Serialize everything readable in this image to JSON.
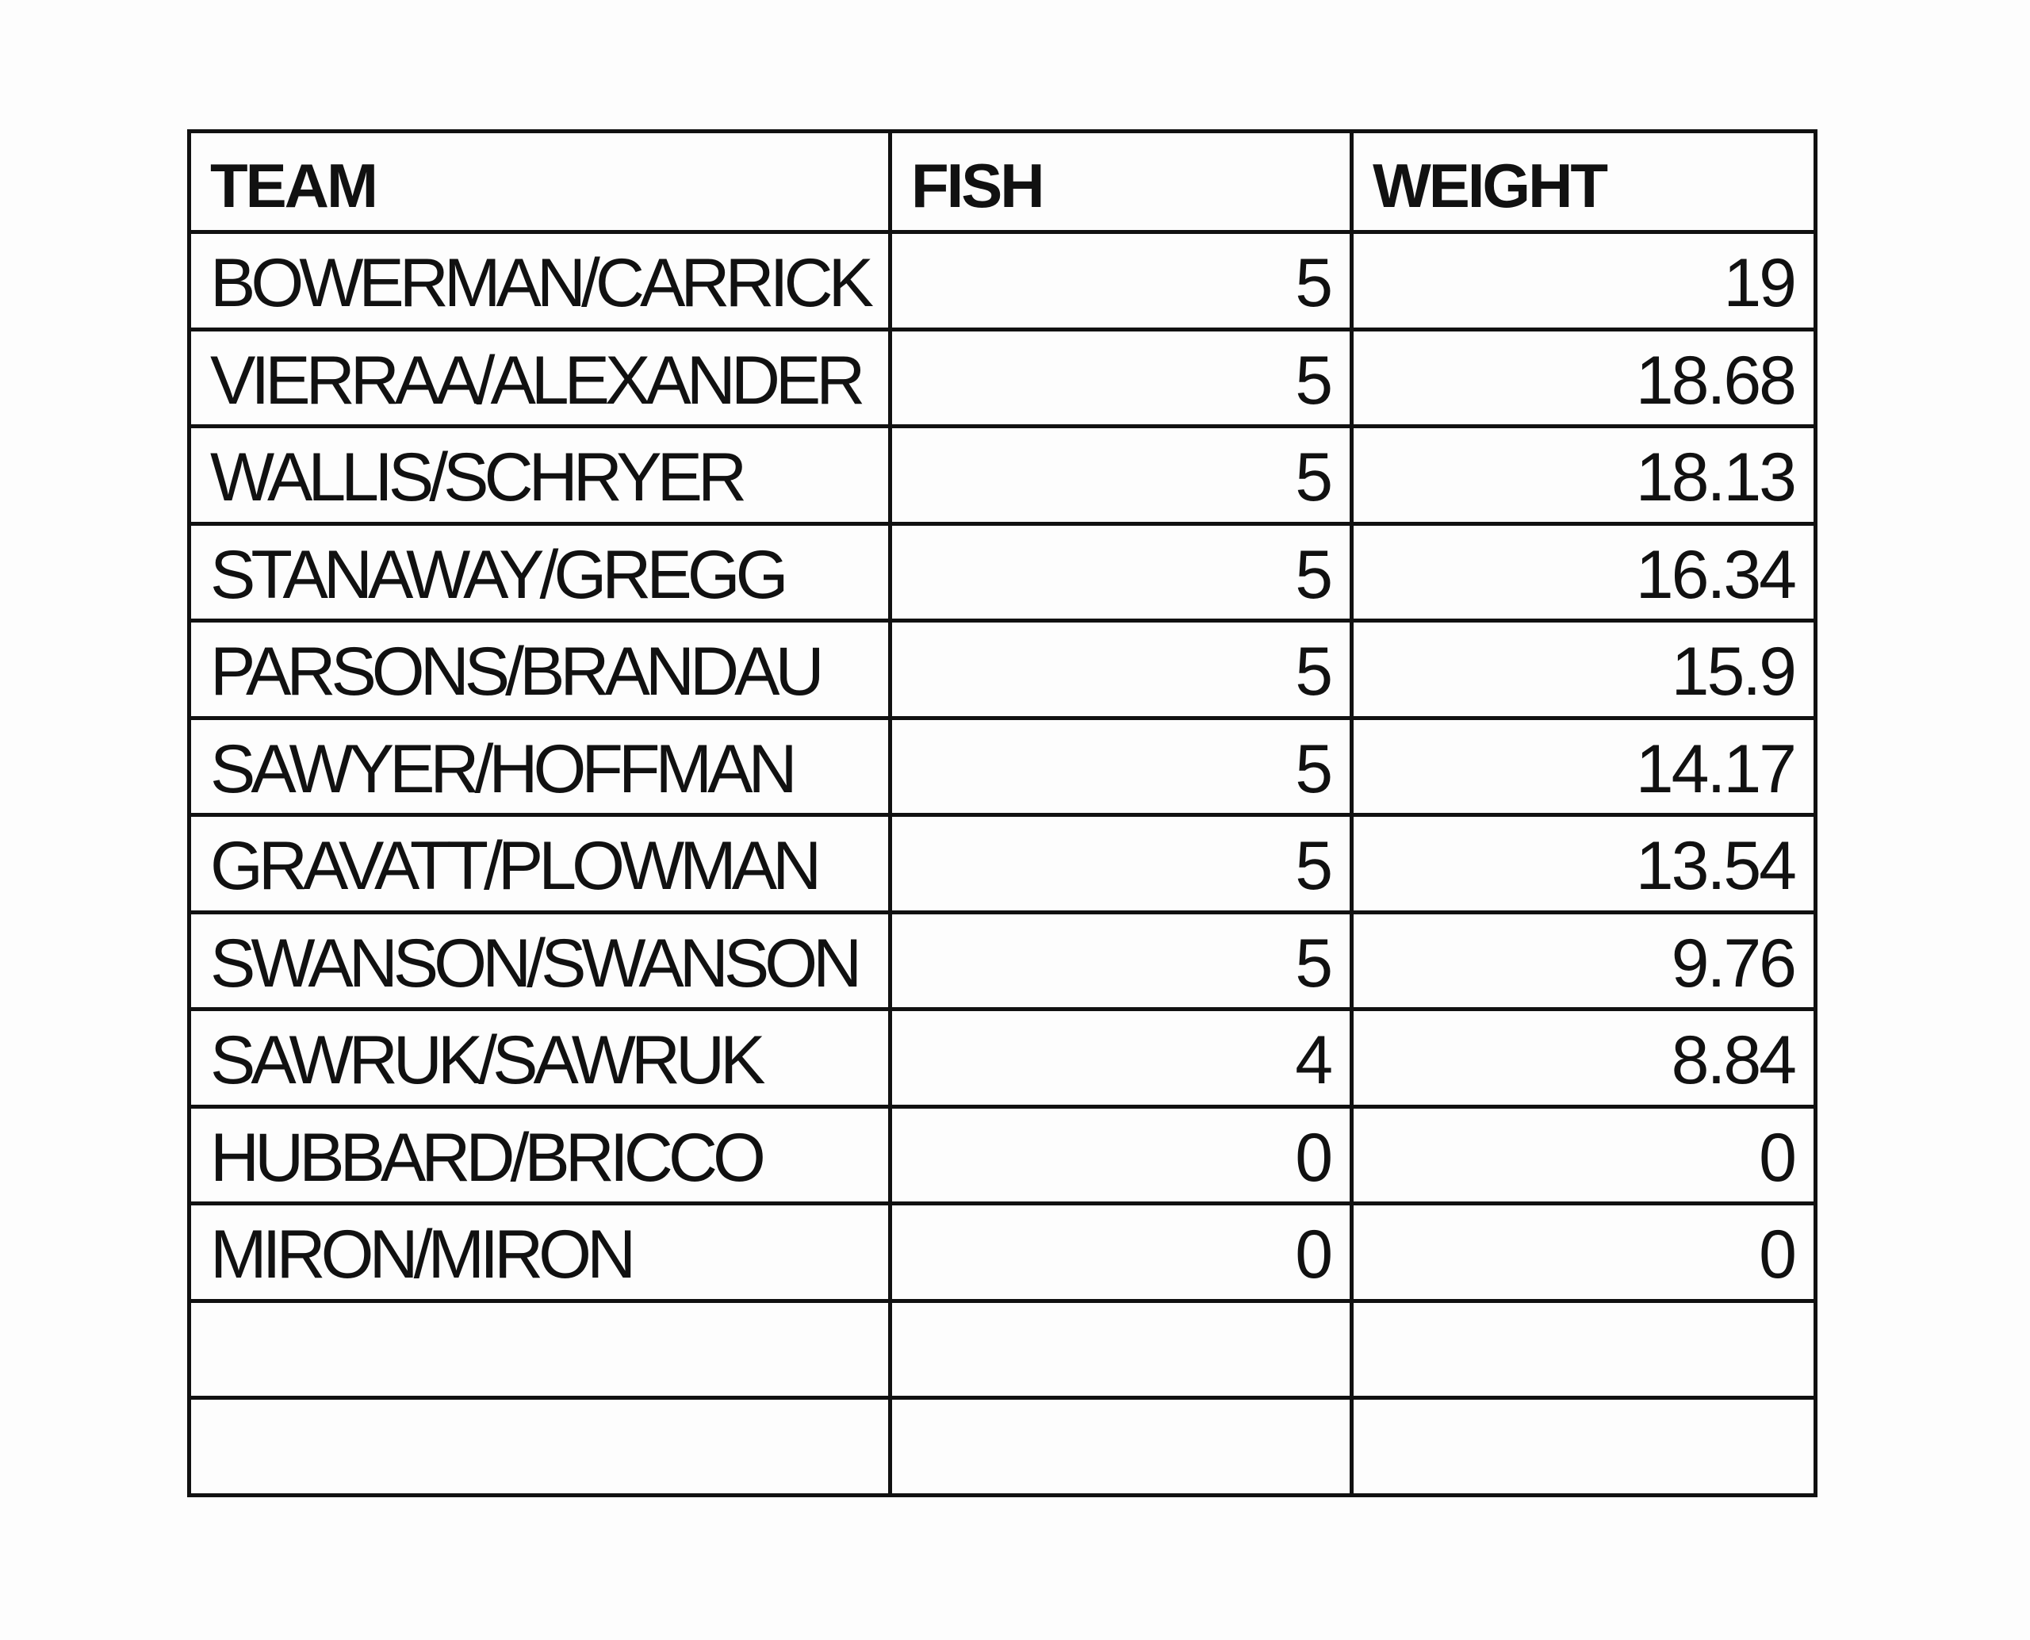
{
  "table": {
    "headers": [
      "TEAM",
      "FISH",
      "WEIGHT"
    ],
    "rows": [
      [
        "BOWERMAN/CARRICK",
        "5",
        "19"
      ],
      [
        "VIERRAA/ALEXANDER",
        "5",
        "18.68"
      ],
      [
        "WALLIS/SCHRYER",
        "5",
        "18.13"
      ],
      [
        "STANAWAY/GREGG",
        "5",
        "16.34"
      ],
      [
        "PARSONS/BRANDAU",
        "5",
        "15.9"
      ],
      [
        "SAWYER/HOFFMAN",
        "5",
        "14.17"
      ],
      [
        "GRAVATT/PLOWMAN",
        "5",
        "13.54"
      ],
      [
        "SWANSON/SWANSON",
        "5",
        "9.76"
      ],
      [
        "SAWRUK/SAWRUK",
        "4",
        "8.84"
      ],
      [
        "HUBBARD/BRICCO",
        "0",
        "0"
      ],
      [
        "MIRON/MIRON",
        "0",
        "0"
      ],
      [
        "",
        "",
        ""
      ],
      [
        "",
        "",
        ""
      ]
    ]
  }
}
